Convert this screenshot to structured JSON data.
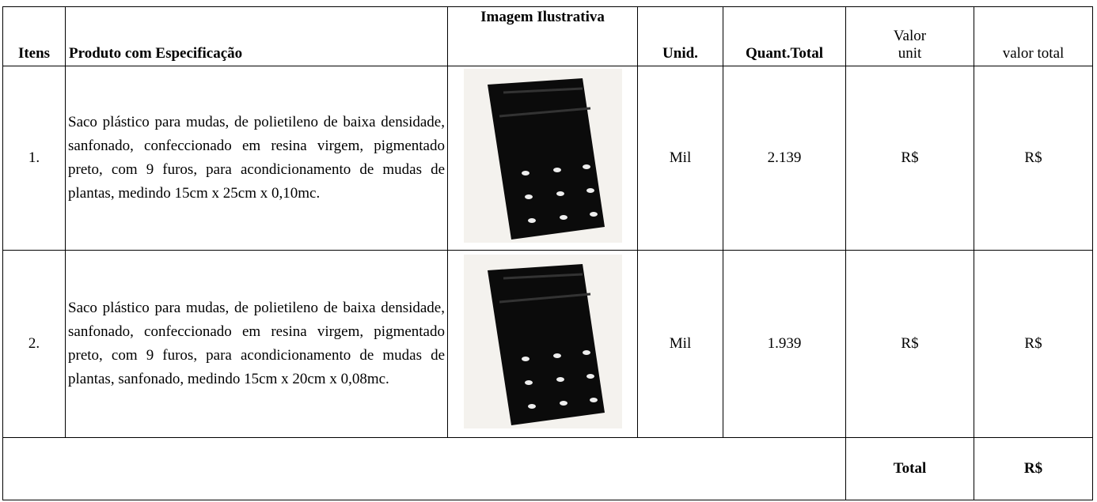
{
  "table": {
    "header": {
      "items": "Itens",
      "product": "Produto com Especificação",
      "image": "Imagem Ilustrativa",
      "unit": "Unid.",
      "quantity": "Quant.Total",
      "unit_value": [
        "Valor",
        "unit"
      ],
      "total_value": "valor total"
    },
    "rows": [
      {
        "item": "1.",
        "description": "Saco plástico para mudas, de polietileno de baixa densidade, sanfonado, confeccionado em resina virgem, pigmentado preto, com 9 furos, para acondicionamento de mudas de plantas, medindo 15cm x 25cm x 0,10mc.",
        "unit": "Mil",
        "quantity": "2.139",
        "unit_value": "R$",
        "total_value": "R$"
      },
      {
        "item": "2.",
        "description": "Saco plástico para mudas, de polietileno de baixa densidade, sanfonado, confeccionado em resina virgem, pigmentado preto, com 9 furos, para acondicionamento de mudas de plantas, sanfonado, medindo 15cm x 20cm x 0,08mc.",
        "unit": "Mil",
        "quantity": "1.939",
        "unit_value": "R$",
        "total_value": "R$"
      }
    ],
    "footer": {
      "label": "Total",
      "value": "R$"
    }
  }
}
